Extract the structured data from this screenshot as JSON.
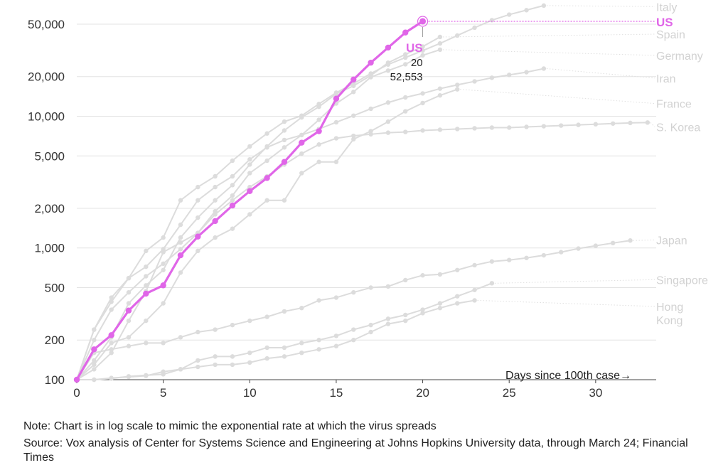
{
  "chart_data": {
    "type": "line",
    "scale": "log",
    "xlabel": "Days since 100th case→",
    "xlim": [
      0,
      33.5
    ],
    "ylim": [
      95,
      62000
    ],
    "xticks": [
      0,
      5,
      10,
      15,
      20,
      25,
      30
    ],
    "yticks": [
      {
        "v": 100,
        "label": "100"
      },
      {
        "v": 200,
        "label": "200"
      },
      {
        "v": 500,
        "label": "500"
      },
      {
        "v": 1000,
        "label": "1,000"
      },
      {
        "v": 2000,
        "label": "2,000"
      },
      {
        "v": 5000,
        "label": "5,000"
      },
      {
        "v": 10000,
        "label": "10,000"
      },
      {
        "v": 20000,
        "label": "20,000"
      },
      {
        "v": 50000,
        "label": "50,000"
      }
    ],
    "highlight": {
      "name": "US",
      "day": "20",
      "cases": "52,553",
      "color": "#e066e8",
      "x": [
        0,
        1,
        2,
        3,
        4,
        5,
        6,
        7,
        8,
        9,
        10,
        11,
        12,
        13,
        14,
        15,
        16,
        17,
        18,
        19,
        20
      ],
      "values": [
        100,
        170,
        218,
        335,
        450,
        520,
        880,
        1220,
        1600,
        2100,
        2700,
        3400,
        4500,
        6300,
        7700,
        13600,
        19000,
        25500,
        33200,
        43200,
        52553
      ]
    },
    "series": [
      {
        "name": "Italy",
        "labelValue": 68000,
        "values": [
          100,
          240,
          420,
          590,
          950,
          1200,
          2300,
          2900,
          3500,
          4600,
          5900,
          7400,
          9100,
          10100,
          12400,
          15100,
          17700,
          21100,
          24700,
          27900,
          31500,
          35700,
          41000,
          47000,
          53600,
          59100,
          63900,
          69200
        ]
      },
      {
        "name": "Spain",
        "labelValue": 42000,
        "values": [
          100,
          140,
          210,
          380,
          520,
          680,
          1200,
          1700,
          2300,
          3000,
          4300,
          5900,
          7800,
          9800,
          11800,
          14800,
          17000,
          20400,
          25500,
          29500,
          33800,
          40000
        ]
      },
      {
        "name": "Germany",
        "labelValue": 29000,
        "values": [
          100,
          120,
          160,
          280,
          470,
          930,
          1100,
          1300,
          1900,
          2500,
          3700,
          4600,
          5800,
          7200,
          9400,
          12500,
          15300,
          19800,
          22200,
          24800,
          29000,
          32000
        ]
      },
      {
        "name": "Iran",
        "labelValue": 19500,
        "values": [
          100,
          240,
          390,
          590,
          720,
          980,
          1500,
          2300,
          2900,
          3500,
          4700,
          5800,
          6600,
          7200,
          8000,
          9000,
          10100,
          11400,
          12700,
          13900,
          14900,
          16200,
          17300,
          18400,
          19600,
          20600,
          21600,
          23000
        ]
      },
      {
        "name": "France",
        "labelValue": 12500,
        "values": [
          100,
          130,
          190,
          210,
          280,
          380,
          650,
          950,
          1200,
          1400,
          1800,
          2300,
          2300,
          3700,
          4500,
          4500,
          6700,
          7700,
          9100,
          10900,
          12600,
          14400,
          16000
        ]
      },
      {
        "name": "S. Korea",
        "labelValue": 8300,
        "values": [
          100,
          200,
          340,
          460,
          610,
          760,
          980,
          1300,
          1800,
          2300,
          2900,
          3500,
          4300,
          5200,
          6100,
          6800,
          7100,
          7300,
          7500,
          7600,
          7800,
          7900,
          8000,
          8100,
          8200,
          8200,
          8300,
          8400,
          8500,
          8600,
          8700,
          8800,
          8900,
          8960
        ]
      },
      {
        "name": "Japan",
        "labelValue": 1150,
        "values": [
          100,
          160,
          170,
          180,
          190,
          190,
          210,
          230,
          240,
          260,
          280,
          300,
          330,
          350,
          400,
          420,
          460,
          500,
          510,
          570,
          620,
          630,
          680,
          740,
          790,
          810,
          840,
          880,
          930,
          990,
          1040,
          1090,
          1140
        ]
      },
      {
        "name": "Singapore",
        "labelValue": 575,
        "values": [
          100,
          100,
          102,
          106,
          108,
          110,
          120,
          140,
          150,
          150,
          160,
          175,
          175,
          190,
          200,
          215,
          240,
          260,
          290,
          310,
          340,
          380,
          430,
          480,
          540
        ]
      },
      {
        "name": "Hong Kong",
        "labelValue": 360,
        "values": [
          100,
          100,
          103,
          105,
          107,
          115,
          120,
          125,
          130,
          130,
          135,
          145,
          150,
          160,
          170,
          180,
          200,
          230,
          265,
          280,
          320,
          350,
          380,
          400
        ]
      }
    ],
    "gray_color": "#dcdcdc",
    "label_color": "#d2d2d2"
  },
  "notes": {
    "note": "Note: Chart is in log scale to mimic the exponential rate at which the virus spreads",
    "source": "Source: Vox analysis of Center for Systems Science and Engineering at Johns Hopkins University data, through March 24; Financial Times"
  }
}
